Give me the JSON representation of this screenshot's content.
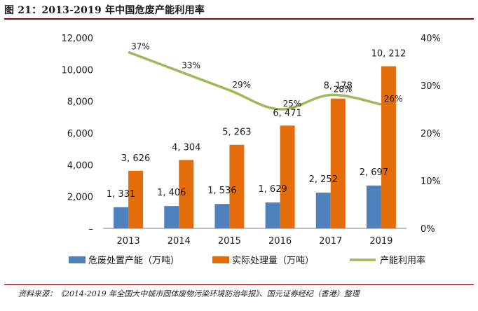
{
  "title": "图 21：2013-2019 年中国危废产能利用率",
  "source": "资料来源：《2014-2019 年全国大中城市固体废物污染环境防治年报》、国元证券经纪（香港）整理",
  "chart_data": {
    "type": "bar+line",
    "categories": [
      "2013",
      "2014",
      "2015",
      "2016",
      "2017",
      "2019"
    ],
    "series": [
      {
        "name": "危废处置产能（万吨）",
        "kind": "bar",
        "axis": "left",
        "color": "#4f81bd",
        "values": [
          1331,
          1406,
          1536,
          1629,
          2252,
          2697
        ],
        "labels": [
          "1, 331",
          "1, 406",
          "1, 536",
          "1, 629",
          "2, 252",
          "2, 697"
        ]
      },
      {
        "name": "实际处理量（万吨）",
        "kind": "bar",
        "axis": "left",
        "color": "#e46c0a",
        "values": [
          3626,
          4304,
          5263,
          6471,
          8178,
          10212
        ],
        "labels": [
          "3, 626",
          "4, 304",
          "5, 263",
          "6, 471",
          "8, 178",
          "10, 212"
        ]
      },
      {
        "name": "产能利用率",
        "kind": "line",
        "axis": "right",
        "color": "#9bbb59",
        "values": [
          37,
          33,
          29,
          25,
          28,
          26
        ],
        "labels": [
          "37%",
          "33%",
          "29%",
          "25%",
          "28%",
          "26%"
        ]
      }
    ],
    "left_axis": {
      "ylim": [
        0,
        12000
      ],
      "ticks": [
        0,
        2000,
        4000,
        6000,
        8000,
        10000,
        12000
      ],
      "tick_labels": [
        "–",
        "2,000",
        "4,000",
        "6,000",
        "8,000",
        "10,000",
        "12,000"
      ]
    },
    "right_axis": {
      "ylim": [
        0,
        40
      ],
      "ticks": [
        0,
        10,
        20,
        30,
        40
      ],
      "tick_labels": [
        "0%",
        "10%",
        "20%",
        "30%",
        "40%"
      ]
    },
    "legend_position": "bottom",
    "grid": false
  }
}
